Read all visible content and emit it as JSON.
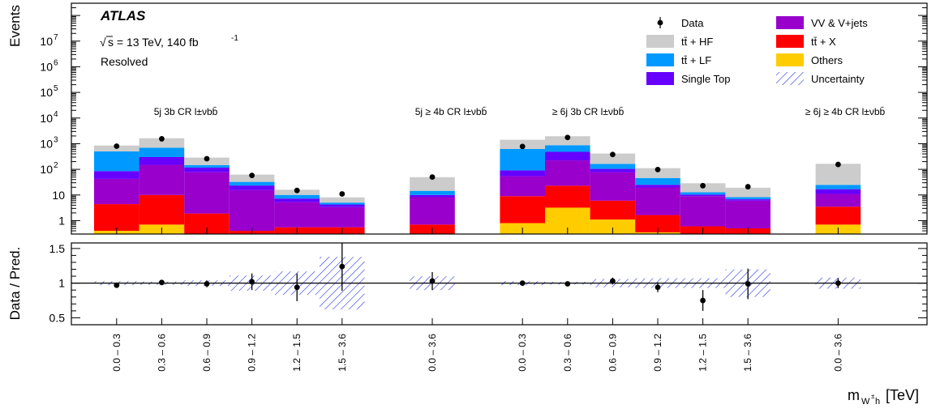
{
  "chart_data": {
    "type": "bar",
    "stacked": true,
    "log_y": true,
    "panel_upper": {
      "ylabel": "Events",
      "ylim": [
        0.3,
        300000000.0
      ],
      "tick_labels": [
        "1",
        "10",
        "10",
        "10",
        "10",
        "10",
        "10",
        "10"
      ],
      "tick_exponents": [
        "",
        "",
        "2",
        "3",
        "4",
        "5",
        "6",
        "7"
      ],
      "tick_values": [
        1,
        10,
        100,
        1000,
        10000,
        100000,
        1000000,
        10000000
      ]
    },
    "panel_lower": {
      "ylabel": "Data / Pred.",
      "ylim": [
        0.4,
        1.58
      ],
      "tick_values": [
        0.5,
        1,
        1.5
      ],
      "tick_labels": [
        "0.5",
        "1",
        "1.5"
      ],
      "reference_line": 1
    },
    "xlabel": "m",
    "xlabel_sub": "W",
    "xlabel_sup": "±",
    "xlabel_sub2": "h",
    "xlabel_unit": "[TeV]",
    "atlas_label": "ATLAS",
    "energy_label": "s = 13 TeV, 140 fb",
    "energy_exponent": "-1",
    "selection_label": "Resolved",
    "regions": [
      {
        "label": "5j 3b CR l±νbb̄"
      },
      {
        "label": "5j ≥ 4b CR l±νbb̄"
      },
      {
        "label": "≥ 6j 3b CR l±νbb̄"
      },
      {
        "label": "≥ 6j ≥ 4b CR l±νbb̄"
      }
    ],
    "categories": [
      "0.0 – 0.3",
      "0.3 – 0.6",
      "0.6 – 0.9",
      "0.9 – 1.2",
      "1.2 – 1.5",
      "1.5 – 3.6",
      "0.0 – 3.6",
      "0.0 – 0.3",
      "0.3 – 0.6",
      "0.6 – 0.9",
      "0.9 – 1.2",
      "1.2 – 1.5",
      "1.5 – 3.6",
      "0.0 – 3.6"
    ],
    "bin_region": [
      0,
      0,
      0,
      0,
      0,
      0,
      1,
      2,
      2,
      2,
      2,
      2,
      2,
      3
    ],
    "series": [
      {
        "name": "Others",
        "color": "#ffcc00",
        "values": [
          0.4,
          0.7,
          0.1,
          0.3,
          0.05,
          0.05,
          0.1,
          0.8,
          3.2,
          1.1,
          0.35,
          0.1,
          0.1,
          0.7
        ]
      },
      {
        "name": "tt̄ + X",
        "color": "#ff0000",
        "values": [
          4.0,
          9.3,
          1.8,
          0.1,
          0.5,
          0.5,
          0.6,
          8.2,
          19.8,
          4.9,
          1.3,
          0.5,
          0.4,
          2.8
        ]
      },
      {
        "name": "VV & V+jets",
        "color": "#9900cc",
        "values": [
          38,
          140,
          75,
          15,
          4.7,
          2.8,
          7.5,
          45,
          200,
          70,
          18,
          8.4,
          5.5,
          7.5
        ]
      },
      {
        "name": "Single Top",
        "color": "#6600ff",
        "values": [
          43,
          150,
          40,
          8,
          2.0,
          0.9,
          1.8,
          37,
          260,
          28,
          5.3,
          1.3,
          0.8,
          5.8
        ]
      },
      {
        "name": "tt̄ + LF",
        "color": "#0099ff",
        "values": [
          415,
          400,
          30,
          9,
          2.8,
          0.8,
          4.5,
          530,
          390,
          60,
          21,
          2.4,
          1.4,
          8.0
        ]
      },
      {
        "name": "tt̄ + HF",
        "color": "#cccccc",
        "values": [
          350,
          930,
          140,
          30,
          6.0,
          3.0,
          35,
          800,
          1080,
          250,
          65,
          16,
          11,
          140
        ]
      }
    ],
    "data": {
      "name": "Data",
      "values": [
        800,
        1550,
        260,
        58,
        15,
        11,
        50,
        780,
        1750,
        380,
        98,
        23,
        21,
        155
      ]
    },
    "uncertainty": {
      "name": "Uncertainty",
      "color": "#3344dd",
      "ratio_halfwidth": [
        0.03,
        0.025,
        0.04,
        0.11,
        0.17,
        0.38,
        0.1,
        0.03,
        0.02,
        0.06,
        0.07,
        0.07,
        0.2,
        0.08
      ]
    },
    "ratio": {
      "values": [
        0.97,
        1.01,
        0.99,
        1.02,
        0.94,
        1.24,
        1.03,
        1.0,
        0.99,
        1.03,
        0.94,
        0.75,
        0.99,
        1.0
      ],
      "errors": [
        0.02,
        0.02,
        0.05,
        0.12,
        0.2,
        0.35,
        0.13,
        0.02,
        0.02,
        0.05,
        0.07,
        0.15,
        0.22,
        0.07
      ]
    },
    "legend": {
      "placement": "top-right",
      "entries": [
        "Data",
        "tt̄ + HF",
        "tt̄ + LF",
        "Single Top",
        "VV & V+jets",
        "tt̄ + X",
        "Others",
        "Uncertainty"
      ]
    }
  }
}
